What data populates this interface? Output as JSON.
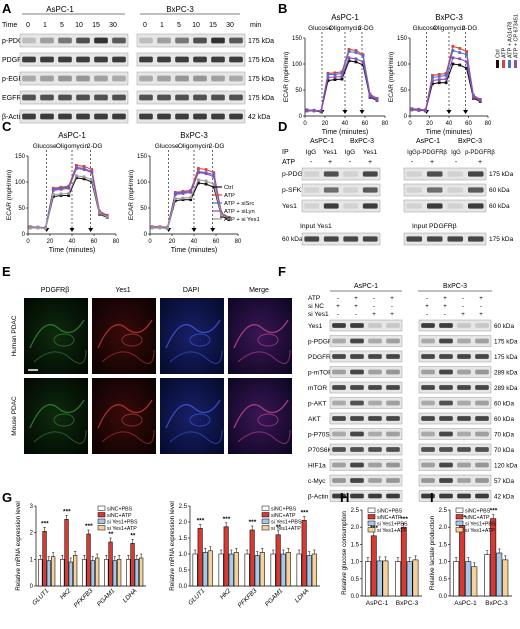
{
  "panels": {
    "A": {
      "letter": "A",
      "groups": [
        "AsPC-1",
        "BxPC-3"
      ],
      "time_label": "Time",
      "time_unit": "min",
      "times": [
        "0",
        "1",
        "5",
        "10",
        "15",
        "30",
        "0",
        "1",
        "5",
        "10",
        "15",
        "30"
      ],
      "rows": [
        {
          "name": "p-PDGFRβ",
          "kda": "175 kDa"
        },
        {
          "name": "PDGFRβ",
          "kda": "175 kDa"
        },
        {
          "name": "p-EGFR",
          "kda": "175 kDa"
        },
        {
          "name": "EGFR",
          "kda": "175 kDa"
        },
        {
          "name": "β-Actin",
          "kda": "42 kDa"
        }
      ]
    },
    "B": {
      "letter": "B",
      "legend": [
        "Ctrl",
        "ATP",
        "ATP + AG1478",
        "ATP + CP 673451"
      ],
      "annotations": [
        "Glucose",
        "Oligomycin",
        "2-DG"
      ]
    },
    "C": {
      "letter": "C",
      "legend": [
        "Ctrl",
        "ATP",
        "ATP + siSrc",
        "ATP + siLyn",
        "ATP + si Yes1"
      ],
      "annotations": [
        "Glucose",
        "Oligomycin",
        "2-DG"
      ]
    },
    "D": {
      "letter": "D",
      "ip_label": "IP",
      "atp_label": "ATP",
      "left_groups": [
        "AsPC-1",
        "BxPC-3"
      ],
      "right_groups": [
        "AsPC-1",
        "BxPC-3"
      ],
      "left_ip": [
        "IgG",
        "Yes1",
        "IgG",
        "Yes1"
      ],
      "right_ip": [
        "IgG",
        "p-PDGFRβ",
        "IgG",
        "p-PDGFRβ"
      ],
      "left_rows": [
        "p-PDGFRβ",
        "p-SFK",
        "Yes1"
      ],
      "right_kda": [
        "175 kDa",
        "60 kDa",
        "60 kDa"
      ],
      "input_left": "Input  Yes1",
      "input_right": "Input  PDGFRβ",
      "input_left_kda": "60 kDa",
      "input_right_kda": "175 kDa",
      "signs": [
        "-",
        "+",
        "-",
        "+"
      ]
    },
    "E": {
      "letter": "E",
      "columns": [
        "PDGFRβ",
        "Yes1",
        "DAPI",
        "Merge"
      ],
      "rows": [
        "Human PDAC",
        "Mouse PDAC"
      ]
    },
    "F": {
      "letter": "F",
      "groups": [
        "AsPC-1",
        "BxPC-3"
      ],
      "cond_labels": [
        "ATP",
        "si NC",
        "si Yes1"
      ],
      "cond_signs": [
        [
          "-",
          "+",
          "-",
          "+",
          "-",
          "+",
          "-",
          "+"
        ],
        [
          "+",
          "+",
          "-",
          "-",
          "+",
          "+",
          "-",
          "-"
        ],
        [
          "-",
          "-",
          "+",
          "+",
          "-",
          "-",
          "+",
          "+"
        ]
      ],
      "rows": [
        {
          "name": "Yes1",
          "kda": "60 kDa"
        },
        {
          "name": "p-PDGFRβ",
          "kda": "175 kDa"
        },
        {
          "name": "PDGFRβ",
          "kda": "175 kDa"
        },
        {
          "name": "p-mTOR",
          "kda": "289 kDa"
        },
        {
          "name": "mTOR",
          "kda": "289 kDa"
        },
        {
          "name": "p-AKT",
          "kda": "60 kDa"
        },
        {
          "name": "AKT",
          "kda": "60 kDa"
        },
        {
          "name": "p-P70S6K",
          "kda": "70 kDa"
        },
        {
          "name": "P70S6K",
          "kda": "70 kDa"
        },
        {
          "name": "HIF1a",
          "kda": "120 kDa"
        },
        {
          "name": "c-Myc",
          "kda": "57 kDa"
        },
        {
          "name": "β-Actin",
          "kda": "42 kDa"
        }
      ]
    },
    "G": {
      "letter": "G",
      "legend": [
        "siNC+PBS",
        "siNC+ATP",
        "si Yes1+PBS",
        "si Yes1+ATP"
      ]
    },
    "H": {
      "letter": "H",
      "legend": [
        "siNC+PBS",
        "siNC+ATP",
        "si Yes1+PBS",
        "si Yes1+ATP"
      ]
    },
    "I": {
      "letter": "I",
      "legend": [
        "siNC+PBS",
        "siNC+ATP",
        "si Yes1+PBS",
        "si Yes1+ATP"
      ]
    }
  },
  "colors": {
    "ctrl": "#111111",
    "atp": "#e0403a",
    "blue": "#4a6fd0",
    "purple": "#8a4fb5",
    "grey": "#9a9a9a",
    "bar_red": "#d63a33",
    "bar_lightblue": "#a6c8ea",
    "bar_peach": "#f6d29b"
  },
  "chart_data": [
    {
      "id": "B-AsPC-1",
      "type": "line",
      "title": "AsPC-1",
      "xlabel": "Time (minutes)",
      "ylabel": "ECAR (mpH/min)",
      "xlim": [
        0,
        80
      ],
      "ylim": [
        0,
        150
      ],
      "xticks": [
        0,
        20,
        40,
        60,
        80
      ],
      "yticks": [
        0,
        50,
        100,
        150
      ],
      "injections": [
        17,
        40,
        57
      ],
      "x": [
        2,
        9,
        16,
        23,
        30,
        37,
        44,
        51,
        58,
        65,
        72
      ],
      "series": [
        {
          "name": "Ctrl",
          "color": "#111111",
          "values": [
            10,
            10,
            8,
            68,
            70,
            71,
            106,
            104,
            98,
            36,
            30
          ]
        },
        {
          "name": "ATP",
          "color": "#e0403a",
          "values": [
            12,
            11,
            10,
            82,
            83,
            85,
            128,
            126,
            118,
            42,
            34
          ]
        },
        {
          "name": "ATP + AG1478",
          "color": "#4a6fd0",
          "values": [
            11,
            11,
            9,
            80,
            80,
            82,
            124,
            122,
            116,
            40,
            33
          ]
        },
        {
          "name": "ATP + CP 673451",
          "color": "#8a4fb5",
          "values": [
            10,
            10,
            9,
            74,
            75,
            76,
            112,
            110,
            104,
            38,
            31
          ]
        }
      ]
    },
    {
      "id": "B-BxPC-3",
      "type": "line",
      "title": "BxPC-3",
      "xlabel": "Time (minutes)",
      "ylabel": "ECAR (mpH/min)",
      "xlim": [
        0,
        80
      ],
      "ylim": [
        0,
        150
      ],
      "xticks": [
        0,
        20,
        40,
        60,
        80
      ],
      "yticks": [
        0,
        50,
        100,
        150
      ],
      "injections": [
        17,
        40,
        57
      ],
      "x": [
        2,
        9,
        16,
        23,
        30,
        37,
        44,
        51,
        58,
        65,
        72
      ],
      "series": [
        {
          "name": "Ctrl",
          "color": "#111111",
          "values": [
            12,
            11,
            10,
            62,
            64,
            64,
            100,
            98,
            92,
            34,
            28
          ]
        },
        {
          "name": "ATP",
          "color": "#e0403a",
          "values": [
            14,
            13,
            12,
            78,
            80,
            82,
            134,
            130,
            124,
            40,
            32
          ]
        },
        {
          "name": "ATP + AG1478",
          "color": "#4a6fd0",
          "values": [
            13,
            12,
            11,
            74,
            76,
            78,
            126,
            122,
            118,
            38,
            31
          ]
        },
        {
          "name": "ATP + CP 673451",
          "color": "#8a4fb5",
          "values": [
            12,
            12,
            10,
            68,
            70,
            71,
            112,
            110,
            104,
            36,
            30
          ]
        }
      ]
    },
    {
      "id": "C-AsPC-1",
      "type": "line",
      "title": "AsPC-1",
      "xlabel": "Time (minutes)",
      "ylabel": "ECAR (mpH/min)",
      "xlim": [
        0,
        80
      ],
      "ylim": [
        0,
        150
      ],
      "xticks": [
        0,
        20,
        40,
        60,
        80
      ],
      "yticks": [
        0,
        50,
        100,
        150
      ],
      "injections": [
        17,
        40,
        57
      ],
      "x": [
        2,
        9,
        16,
        23,
        30,
        37,
        44,
        51,
        58,
        65,
        72
      ],
      "series": [
        {
          "name": "Ctrl",
          "color": "#111111",
          "values": [
            12,
            12,
            11,
            72,
            74,
            74,
            108,
            106,
            100,
            38,
            32
          ]
        },
        {
          "name": "ATP",
          "color": "#e0403a",
          "values": [
            14,
            13,
            12,
            88,
            90,
            92,
            132,
            130,
            124,
            44,
            36
          ]
        },
        {
          "name": "ATP + siSrc",
          "color": "#4a6fd0",
          "values": [
            13,
            13,
            12,
            86,
            88,
            90,
            128,
            126,
            120,
            42,
            34
          ]
        },
        {
          "name": "ATP + siLyn",
          "color": "#8a4fb5",
          "values": [
            13,
            12,
            12,
            84,
            86,
            88,
            126,
            124,
            118,
            42,
            34
          ]
        },
        {
          "name": "ATP + si Yes1",
          "color": "#9a9a9a",
          "values": [
            12,
            12,
            11,
            76,
            77,
            78,
            112,
            110,
            104,
            40,
            33
          ]
        }
      ]
    },
    {
      "id": "C-BxPC-3",
      "type": "line",
      "title": "BxPC-3",
      "xlabel": "Time (minutes)",
      "ylabel": "ECAR (mpH/min)",
      "xlim": [
        0,
        80
      ],
      "ylim": [
        0,
        150
      ],
      "xticks": [
        0,
        20,
        40,
        60,
        80
      ],
      "yticks": [
        0,
        50,
        100,
        150
      ],
      "injections": [
        17,
        40,
        57
      ],
      "x": [
        2,
        9,
        16,
        23,
        30,
        37,
        44,
        51,
        58,
        65,
        72
      ],
      "series": [
        {
          "name": "Ctrl",
          "color": "#111111",
          "values": [
            12,
            12,
            11,
            64,
            66,
            66,
            98,
            96,
            90,
            34,
            28
          ]
        },
        {
          "name": "ATP",
          "color": "#e0403a",
          "values": [
            14,
            14,
            13,
            80,
            82,
            84,
            126,
            124,
            118,
            40,
            32
          ]
        },
        {
          "name": "ATP + siSrc",
          "color": "#4a6fd0",
          "values": [
            13,
            13,
            12,
            78,
            80,
            82,
            120,
            118,
            114,
            38,
            31
          ]
        },
        {
          "name": "ATP + siLyn",
          "color": "#8a4fb5",
          "values": [
            13,
            13,
            12,
            76,
            78,
            80,
            118,
            116,
            110,
            38,
            31
          ]
        },
        {
          "name": "ATP + si Yes1",
          "color": "#9a9a9a",
          "values": [
            12,
            12,
            11,
            68,
            69,
            70,
            104,
            102,
            96,
            36,
            30
          ]
        }
      ]
    },
    {
      "id": "G-left",
      "type": "bar",
      "ylabel": "Relative mRNA expression level",
      "ylim": [
        0,
        3
      ],
      "yticks": [
        0,
        1,
        2,
        3
      ],
      "categories": [
        "GLUT1",
        "HK2",
        "PFKFB3",
        "PGAM1",
        "LDHA"
      ],
      "significance": [
        "***",
        "***",
        "***",
        "**",
        "**"
      ],
      "series": [
        {
          "name": "siNC+PBS",
          "values": [
            1.0,
            1.0,
            1.0,
            1.0,
            1.0
          ]
        },
        {
          "name": "siNC+ATP",
          "values": [
            2.05,
            2.5,
            1.95,
            1.65,
            1.6
          ]
        },
        {
          "name": "si Yes1+PBS",
          "values": [
            0.95,
            0.9,
            0.95,
            0.95,
            1.0
          ]
        },
        {
          "name": "si Yes1+ATP",
          "values": [
            1.1,
            1.15,
            1.05,
            1.0,
            1.05
          ]
        }
      ]
    },
    {
      "id": "G-right",
      "type": "bar",
      "ylabel": "Relative mRNA expression level",
      "ylim": [
        0,
        2.5
      ],
      "yticks": [
        0.0,
        0.5,
        1.0,
        1.5,
        2.0,
        2.5
      ],
      "categories": [
        "GLUT1",
        "HK2",
        "PFKFB3",
        "PGAM1",
        "LDHA"
      ],
      "significance": [
        "***",
        "***",
        "***",
        "**",
        "***"
      ],
      "series": [
        {
          "name": "siNC+PBS",
          "values": [
            1.0,
            1.0,
            1.0,
            1.0,
            1.0
          ]
        },
        {
          "name": "siNC+ATP",
          "values": [
            1.8,
            1.85,
            1.75,
            1.6,
            2.05
          ]
        },
        {
          "name": "si Yes1+PBS",
          "values": [
            1.05,
            1.0,
            0.95,
            1.0,
            0.95
          ]
        },
        {
          "name": "si Yes1+ATP",
          "values": [
            1.1,
            1.05,
            1.05,
            1.05,
            1.0
          ]
        }
      ]
    },
    {
      "id": "H",
      "type": "bar",
      "ylabel": "Relative glucose consumption",
      "ylim": [
        0,
        2.5
      ],
      "yticks": [
        0.0,
        0.5,
        1.0,
        1.5,
        2.0,
        2.5
      ],
      "categories": [
        "AsPC-1",
        "BxPC-3"
      ],
      "significance": [
        "***",
        "***"
      ],
      "series": [
        {
          "name": "siNC+PBS",
          "values": [
            1.0,
            1.0
          ]
        },
        {
          "name": "siNC+ATP",
          "values": [
            1.75,
            2.0
          ]
        },
        {
          "name": "si Yes1+PBS",
          "values": [
            1.02,
            1.0
          ]
        },
        {
          "name": "si Yes1+ATP",
          "values": [
            1.02,
            1.05
          ]
        }
      ]
    },
    {
      "id": "I",
      "type": "bar",
      "ylabel": "Relative lactate production",
      "ylim": [
        0,
        2.5
      ],
      "yticks": [
        0.0,
        0.5,
        1.0,
        1.5,
        2.0,
        2.5
      ],
      "categories": [
        "AsPC-1",
        "BxPC-3"
      ],
      "significance": [
        "***",
        "***"
      ],
      "series": [
        {
          "name": "siNC+PBS",
          "values": [
            1.0,
            1.2
          ]
        },
        {
          "name": "siNC+ATP",
          "values": [
            2.05,
            2.25
          ]
        },
        {
          "name": "si Yes1+PBS",
          "values": [
            1.0,
            1.25
          ]
        },
        {
          "name": "si Yes1+ATP",
          "values": [
            0.85,
            1.05
          ]
        }
      ]
    }
  ]
}
